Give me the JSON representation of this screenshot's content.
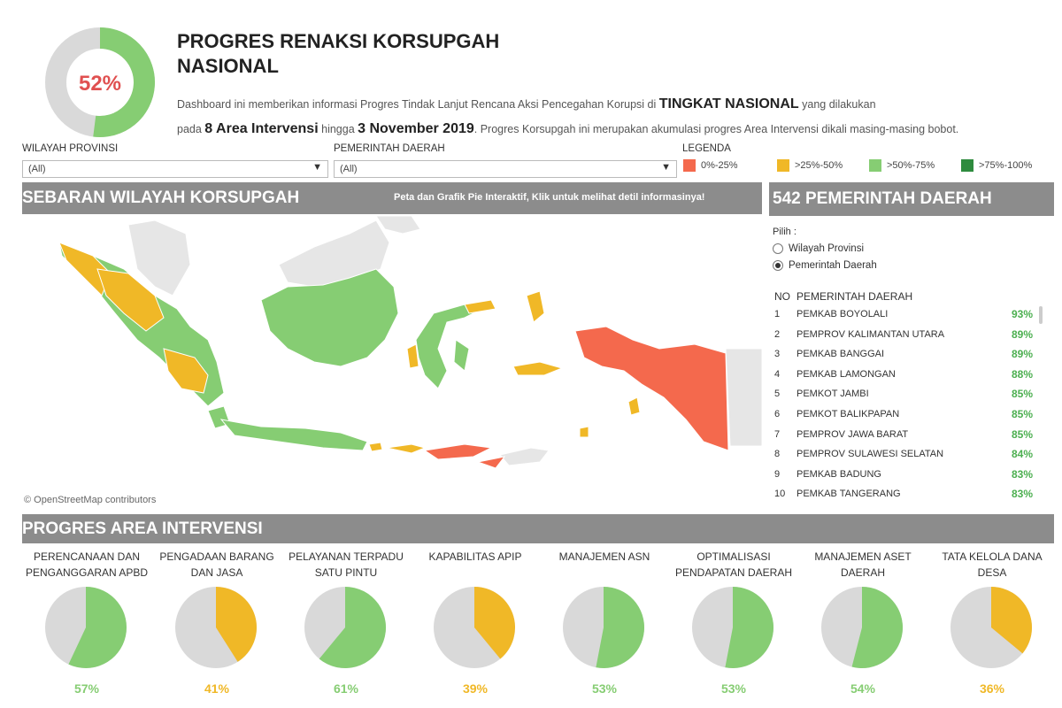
{
  "header": {
    "percent": 52,
    "percent_label": "52%",
    "title_line1": "PROGRES RENAKSI KORSUPGAH",
    "title_line2": "NASIONAL",
    "desc_1": "Dashboard ini memberikan informasi Progres Tindak Lanjut Rencana Aksi Pencegahan Korupsi di ",
    "desc_2": "TINGKAT NASIONAL",
    "desc_3": " yang dilakukan",
    "desc_4": "pada ",
    "desc_5": "8 Area Intervensi",
    "desc_6": " hingga ",
    "desc_7": "3 November 2019",
    "desc_8": ". Progres Korsupgah ini merupakan akumulasi progres Area Intervensi dikali masing-masing bobot."
  },
  "filters": {
    "province_label": "WILAYAH PROVINSI",
    "province_value": "(All)",
    "pemda_label": "PEMERINTAH DAERAH",
    "pemda_value": "(All)"
  },
  "legend": {
    "title": "LEGENDA",
    "items": [
      {
        "label": "0%-25%",
        "color": "#f4694d"
      },
      {
        "label": ">25%-50%",
        "color": "#f0b827"
      },
      {
        "label": ">50%-75%",
        "color": "#86cd73"
      },
      {
        "label": ">75%-100%",
        "color": "#2e8b3e"
      }
    ]
  },
  "map_section": {
    "title": "SEBARAN WILAYAH KORSUPGAH",
    "hint": "Peta dan Grafik Pie Interaktif, Klik untuk melihat detil informasinya!",
    "attribution": "© OpenStreetMap contributors"
  },
  "list_section": {
    "title": "542 PEMERINTAH DAERAH",
    "pilih": "Pilih :",
    "radio_1": "Wilayah Provinsi",
    "radio_2": "Pemerintah Daerah",
    "col_no": "NO",
    "col_name": "PEMERINTAH DAERAH",
    "rows": [
      {
        "no": "1",
        "name": "PEMKAB BOYOLALI",
        "pct": "93%"
      },
      {
        "no": "2",
        "name": "PEMPROV KALIMANTAN UTARA",
        "pct": "89%"
      },
      {
        "no": "3",
        "name": "PEMKAB BANGGAI",
        "pct": "89%"
      },
      {
        "no": "4",
        "name": "PEMKAB LAMONGAN",
        "pct": "88%"
      },
      {
        "no": "5",
        "name": "PEMKOT JAMBI",
        "pct": "85%"
      },
      {
        "no": "6",
        "name": "PEMKOT BALIKPAPAN",
        "pct": "85%"
      },
      {
        "no": "7",
        "name": "PEMPROV JAWA BARAT",
        "pct": "85%"
      },
      {
        "no": "8",
        "name": "PEMPROV SULAWESI SELATAN",
        "pct": "84%"
      },
      {
        "no": "9",
        "name": "PEMKAB BADUNG",
        "pct": "83%"
      },
      {
        "no": "10",
        "name": "PEMKAB TANGERANG",
        "pct": "83%"
      }
    ]
  },
  "areas": {
    "title": "PROGRES AREA INTERVENSI",
    "items": [
      {
        "line1": "PERENCANAAN DAN",
        "line2": "PENGANGGARAN APBD",
        "value": 57,
        "label": "57%",
        "color": "#86cd73"
      },
      {
        "line1": "PENGADAAN BARANG",
        "line2": "DAN JASA",
        "value": 41,
        "label": "41%",
        "color": "#f0b827"
      },
      {
        "line1": "PELAYANAN TERPADU",
        "line2": "SATU PINTU",
        "value": 61,
        "label": "61%",
        "color": "#86cd73"
      },
      {
        "line1": "KAPABILITAS APIP",
        "line2": "",
        "value": 39,
        "label": "39%",
        "color": "#f0b827"
      },
      {
        "line1": "MANAJEMEN ASN",
        "line2": "",
        "value": 53,
        "label": "53%",
        "color": "#86cd73"
      },
      {
        "line1": "OPTIMALISASI",
        "line2": "PENDAPATAN DAERAH",
        "value": 53,
        "label": "53%",
        "color": "#86cd73"
      },
      {
        "line1": "MANAJEMEN ASET",
        "line2": "DAERAH",
        "value": 54,
        "label": "54%",
        "color": "#86cd73"
      },
      {
        "line1": "TATA KELOLA DANA",
        "line2": "DESA",
        "value": 36,
        "label": "36%",
        "color": "#f0b827"
      }
    ]
  },
  "colors": {
    "green": "#86cd73",
    "yellow": "#f0b827",
    "red": "#f4694d",
    "pie_rest": "#d9d9d9",
    "header_bar": "#8c8c8c",
    "highlight_red": "#e05050"
  }
}
